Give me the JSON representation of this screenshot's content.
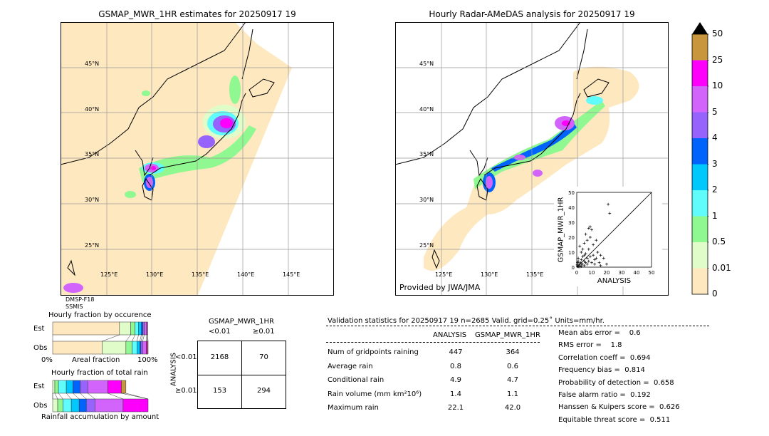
{
  "left_map": {
    "title": "GSMAP_MWR_1HR estimates for 20250917 19",
    "lat_labels": [
      "45°N",
      "40°N",
      "35°N",
      "30°N",
      "25°N"
    ],
    "lon_labels": [
      "125°E",
      "130°E",
      "135°E",
      "140°E",
      "145°E"
    ],
    "sensor_lines": [
      "DMSP-F18",
      "SSMIS"
    ]
  },
  "right_map": {
    "title": "Hourly Radar-AMeDAS analysis for 20250917 19",
    "lat_labels": [
      "45°N",
      "40°N",
      "35°N",
      "30°N",
      "25°N"
    ],
    "lon_labels": [
      "125°E",
      "130°E",
      "135°E"
    ],
    "credit": "Provided by JWA/JMA"
  },
  "colorbar": {
    "ticks": [
      "0",
      "0.01",
      "0.5",
      "1",
      "2",
      "3",
      "4",
      "5",
      "10",
      "25",
      "50"
    ],
    "colors": [
      "#fee8c0",
      "#e0fcc8",
      "#90f890",
      "#60fcfc",
      "#00c8fc",
      "#0064fc",
      "#9664fc",
      "#d264fc",
      "#fc00fc",
      "#c8963c"
    ],
    "over_color": "#000000"
  },
  "chart_data": [
    {
      "type": "scatter",
      "xlabel": "ANALYSIS",
      "ylabel": "GSMAP_MWR_1HR",
      "xlim": [
        0,
        50
      ],
      "ylim": [
        0,
        50
      ],
      "xticks": [
        "0",
        "10",
        "20",
        "30",
        "40",
        "50"
      ],
      "yticks": [
        "0",
        "10",
        "20",
        "30",
        "40",
        "50"
      ],
      "diagonal": true,
      "points": [
        [
          0.5,
          0.5
        ],
        [
          1,
          0.3
        ],
        [
          1.5,
          2
        ],
        [
          2,
          1
        ],
        [
          2.5,
          3
        ],
        [
          3,
          0.5
        ],
        [
          3,
          5
        ],
        [
          4,
          2
        ],
        [
          4,
          7
        ],
        [
          5,
          1
        ],
        [
          5,
          4
        ],
        [
          6,
          3
        ],
        [
          6,
          9
        ],
        [
          7,
          2
        ],
        [
          7,
          6
        ],
        [
          8,
          12
        ],
        [
          8,
          4
        ],
        [
          9,
          7
        ],
        [
          9,
          20
        ],
        [
          10,
          3
        ],
        [
          10,
          25
        ],
        [
          11,
          8
        ],
        [
          11,
          15
        ],
        [
          12,
          5
        ],
        [
          12,
          2
        ],
        [
          13,
          6
        ],
        [
          14,
          10
        ],
        [
          15,
          3
        ],
        [
          16,
          1
        ],
        [
          18,
          6
        ],
        [
          20,
          2
        ],
        [
          21,
          42
        ],
        [
          22,
          36
        ],
        [
          2,
          14
        ],
        [
          3,
          10
        ],
        [
          1,
          6
        ],
        [
          0.5,
          3
        ],
        [
          5,
          16
        ],
        [
          6,
          22
        ],
        [
          8,
          26
        ],
        [
          9,
          27
        ],
        [
          7,
          18
        ],
        [
          4,
          12
        ],
        [
          13,
          18
        ],
        [
          16,
          8
        ],
        [
          2,
          0.2
        ],
        [
          0.3,
          1.5
        ],
        [
          1,
          4
        ],
        [
          3,
          2
        ],
        [
          5,
          8
        ]
      ]
    },
    {
      "type": "bar",
      "title": "Hourly fraction by occurence",
      "xlabel": "Areal fraction",
      "x_tick_labels": [
        "0%",
        "100%"
      ],
      "categories": [
        "Est",
        "Obs"
      ],
      "stacked_percent": {
        "Est": [
          70,
          11.75,
          4.5,
          3.75,
          3,
          1.5,
          1.5,
          2.5,
          0.75,
          0.25
        ],
        "Obs": [
          51.75,
          25,
          6.5,
          5,
          3,
          1.25,
          1.75,
          3.75,
          1.25,
          0.75
        ]
      }
    },
    {
      "type": "bar",
      "title": "Hourly fraction of total rain",
      "xlabel": "Rainfall accumulation by amount",
      "categories": [
        "Est",
        "Obs"
      ],
      "stacked_percent": {
        "Est": [
          0,
          2.25,
          3.75,
          8.25,
          7,
          7.5,
          8,
          21,
          14.25,
          4.75
        ],
        "Obs": [
          0,
          5.25,
          5.5,
          8.75,
          8.25,
          7.5,
          9,
          29.5,
          26.25,
          0
        ]
      }
    }
  ],
  "contingency": {
    "title": "GSMAP_MWR_1HR",
    "col_labels": [
      "<0.01",
      "≥0.01"
    ],
    "row_axis_label": "ANALYSIS",
    "row_labels": [
      "<0.01",
      "≥0.01"
    ],
    "cells": [
      [
        "2168",
        "70"
      ],
      [
        "153",
        "294"
      ]
    ]
  },
  "stats": {
    "header": "Validation statistics for 20250917 19  n=2685 Valid. grid=0.25˚ Units=mm/hr.",
    "col_headers": [
      "ANALYSIS",
      "GSMAP_MWR_1HR"
    ],
    "rows": [
      {
        "label": "Num of gridpoints raining",
        "a": "447",
        "b": "364"
      },
      {
        "label": "Average rain",
        "a": "0.8",
        "b": "0.6"
      },
      {
        "label": "Conditional rain",
        "a": "4.9",
        "b": "4.7"
      },
      {
        "label": "Rain volume (mm km²10⁶)",
        "a": "1.4",
        "b": "1.1"
      },
      {
        "label": "Maximum rain",
        "a": "22.1",
        "b": "42.0"
      }
    ],
    "scores": [
      "Mean abs error =    0.6",
      "RMS error =    1.8",
      "Correlation coeff =  0.694",
      "Frequency bias =  0.814",
      "Probability of detection =  0.658",
      "False alarm ratio =  0.192",
      "Hanssen & Kuipers score =  0.626",
      "Equitable threat score =  0.511"
    ]
  }
}
